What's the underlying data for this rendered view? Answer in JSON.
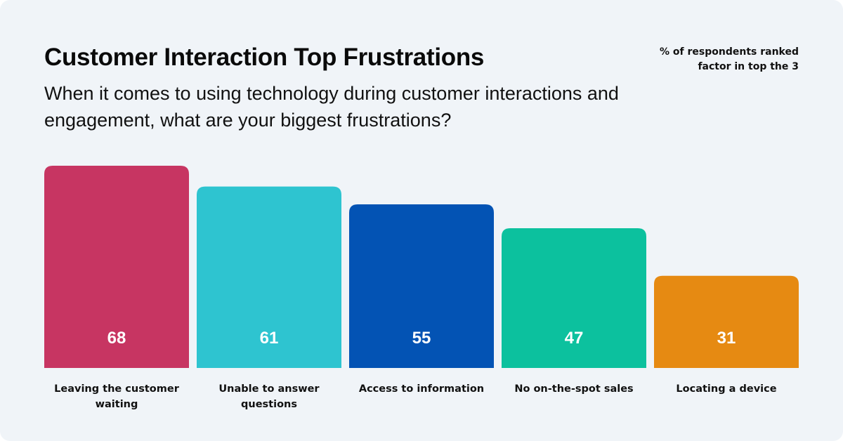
{
  "chart_data": {
    "type": "bar",
    "title": "Customer Interaction Top Frustrations",
    "subtitle": "When it comes to using technology during customer interactions and engagement, what are your biggest frustrations?",
    "note": "% of respondents ranked factor in top the 3",
    "categories": [
      "Leaving the customer waiting",
      "Unable to answer questions",
      "Access to information",
      "No on-the-spot sales",
      "Locating a device"
    ],
    "values": [
      68,
      61,
      55,
      47,
      31
    ],
    "colors": [
      "#c73562",
      "#2ec4d0",
      "#0353b4",
      "#0cc19e",
      "#e68a12"
    ],
    "ylim": [
      0,
      68
    ],
    "xlabel": "",
    "ylabel": "",
    "grid": false
  }
}
